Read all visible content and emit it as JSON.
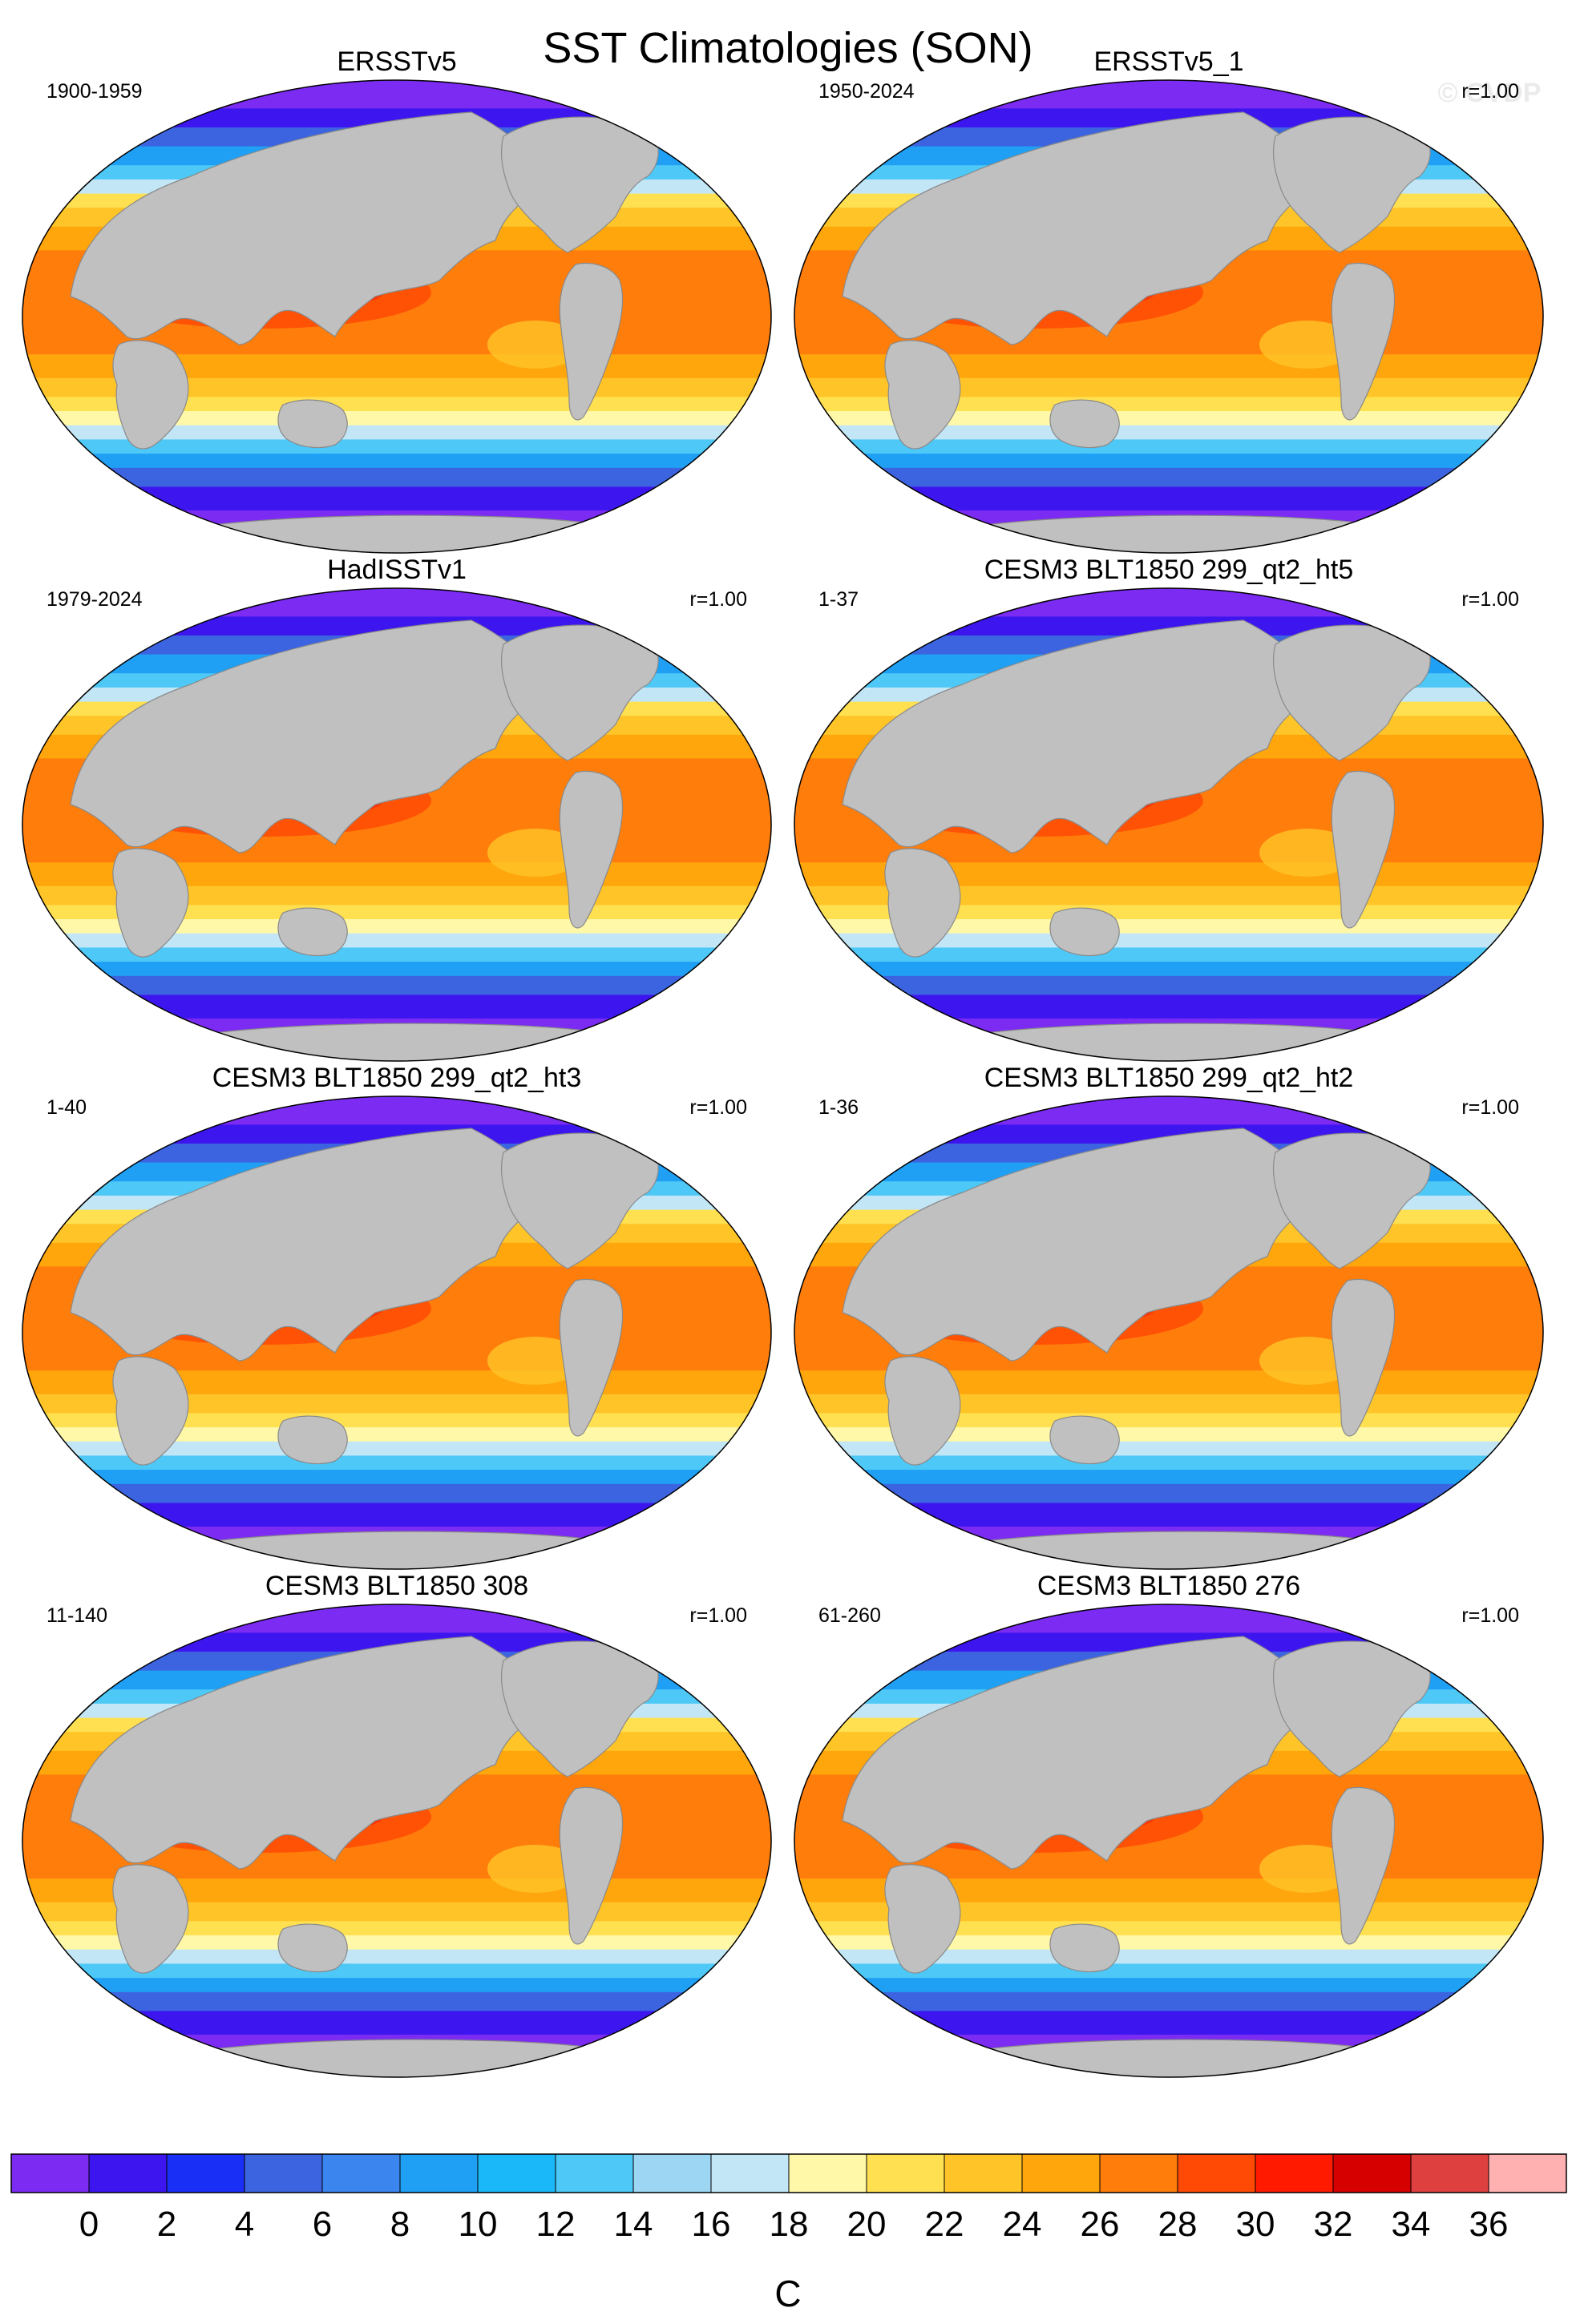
{
  "figure": {
    "title": "SST Climatologies (SON)",
    "watermark": "© CVDP"
  },
  "chart_data": {
    "type": "heatmap",
    "projection": "Robinson (global map)",
    "variable_unit": "C",
    "land_color": "#c0c0c0",
    "ice_color": "#ffffff",
    "panels": [
      {
        "title": "ERSSTv5",
        "period": "1900-1959",
        "r": ""
      },
      {
        "title": "ERSSTv5_1",
        "period": "1950-2024",
        "r": "r=1.00"
      },
      {
        "title": "HadISSTv1",
        "period": "1979-2024",
        "r": "r=1.00"
      },
      {
        "title": "CESM3 BLT1850 299_qt2_ht5",
        "period": "1-37",
        "r": "r=1.00"
      },
      {
        "title": "CESM3 BLT1850 299_qt2_ht3",
        "period": "1-40",
        "r": "r=1.00"
      },
      {
        "title": "CESM3 BLT1850 299_qt2_ht2",
        "period": "1-36",
        "r": "r=1.00"
      },
      {
        "title": "CESM3 BLT1850 308",
        "period": "11-140",
        "r": "r=1.00"
      },
      {
        "title": "CESM3 BLT1850 276",
        "period": "61-260",
        "r": "r=1.00"
      }
    ],
    "colorbar": {
      "label": "C",
      "ticks": [
        "0",
        "2",
        "4",
        "6",
        "8",
        "10",
        "12",
        "14",
        "16",
        "18",
        "20",
        "22",
        "24",
        "26",
        "28",
        "30",
        "32",
        "34",
        "36"
      ],
      "colors": [
        "#7b2bf2",
        "#3d16ef",
        "#1a2ff5",
        "#3c64e0",
        "#3a86ee",
        "#1fa0f5",
        "#1ab8f8",
        "#4dc8f7",
        "#9cd6f2",
        "#c2e6f6",
        "#fff8a8",
        "#ffe050",
        "#ffc427",
        "#ffa60d",
        "#ff7d0b",
        "#ff4a05",
        "#ff1a00",
        "#d60000",
        "#de4040",
        "#ffb0b0"
      ]
    }
  }
}
